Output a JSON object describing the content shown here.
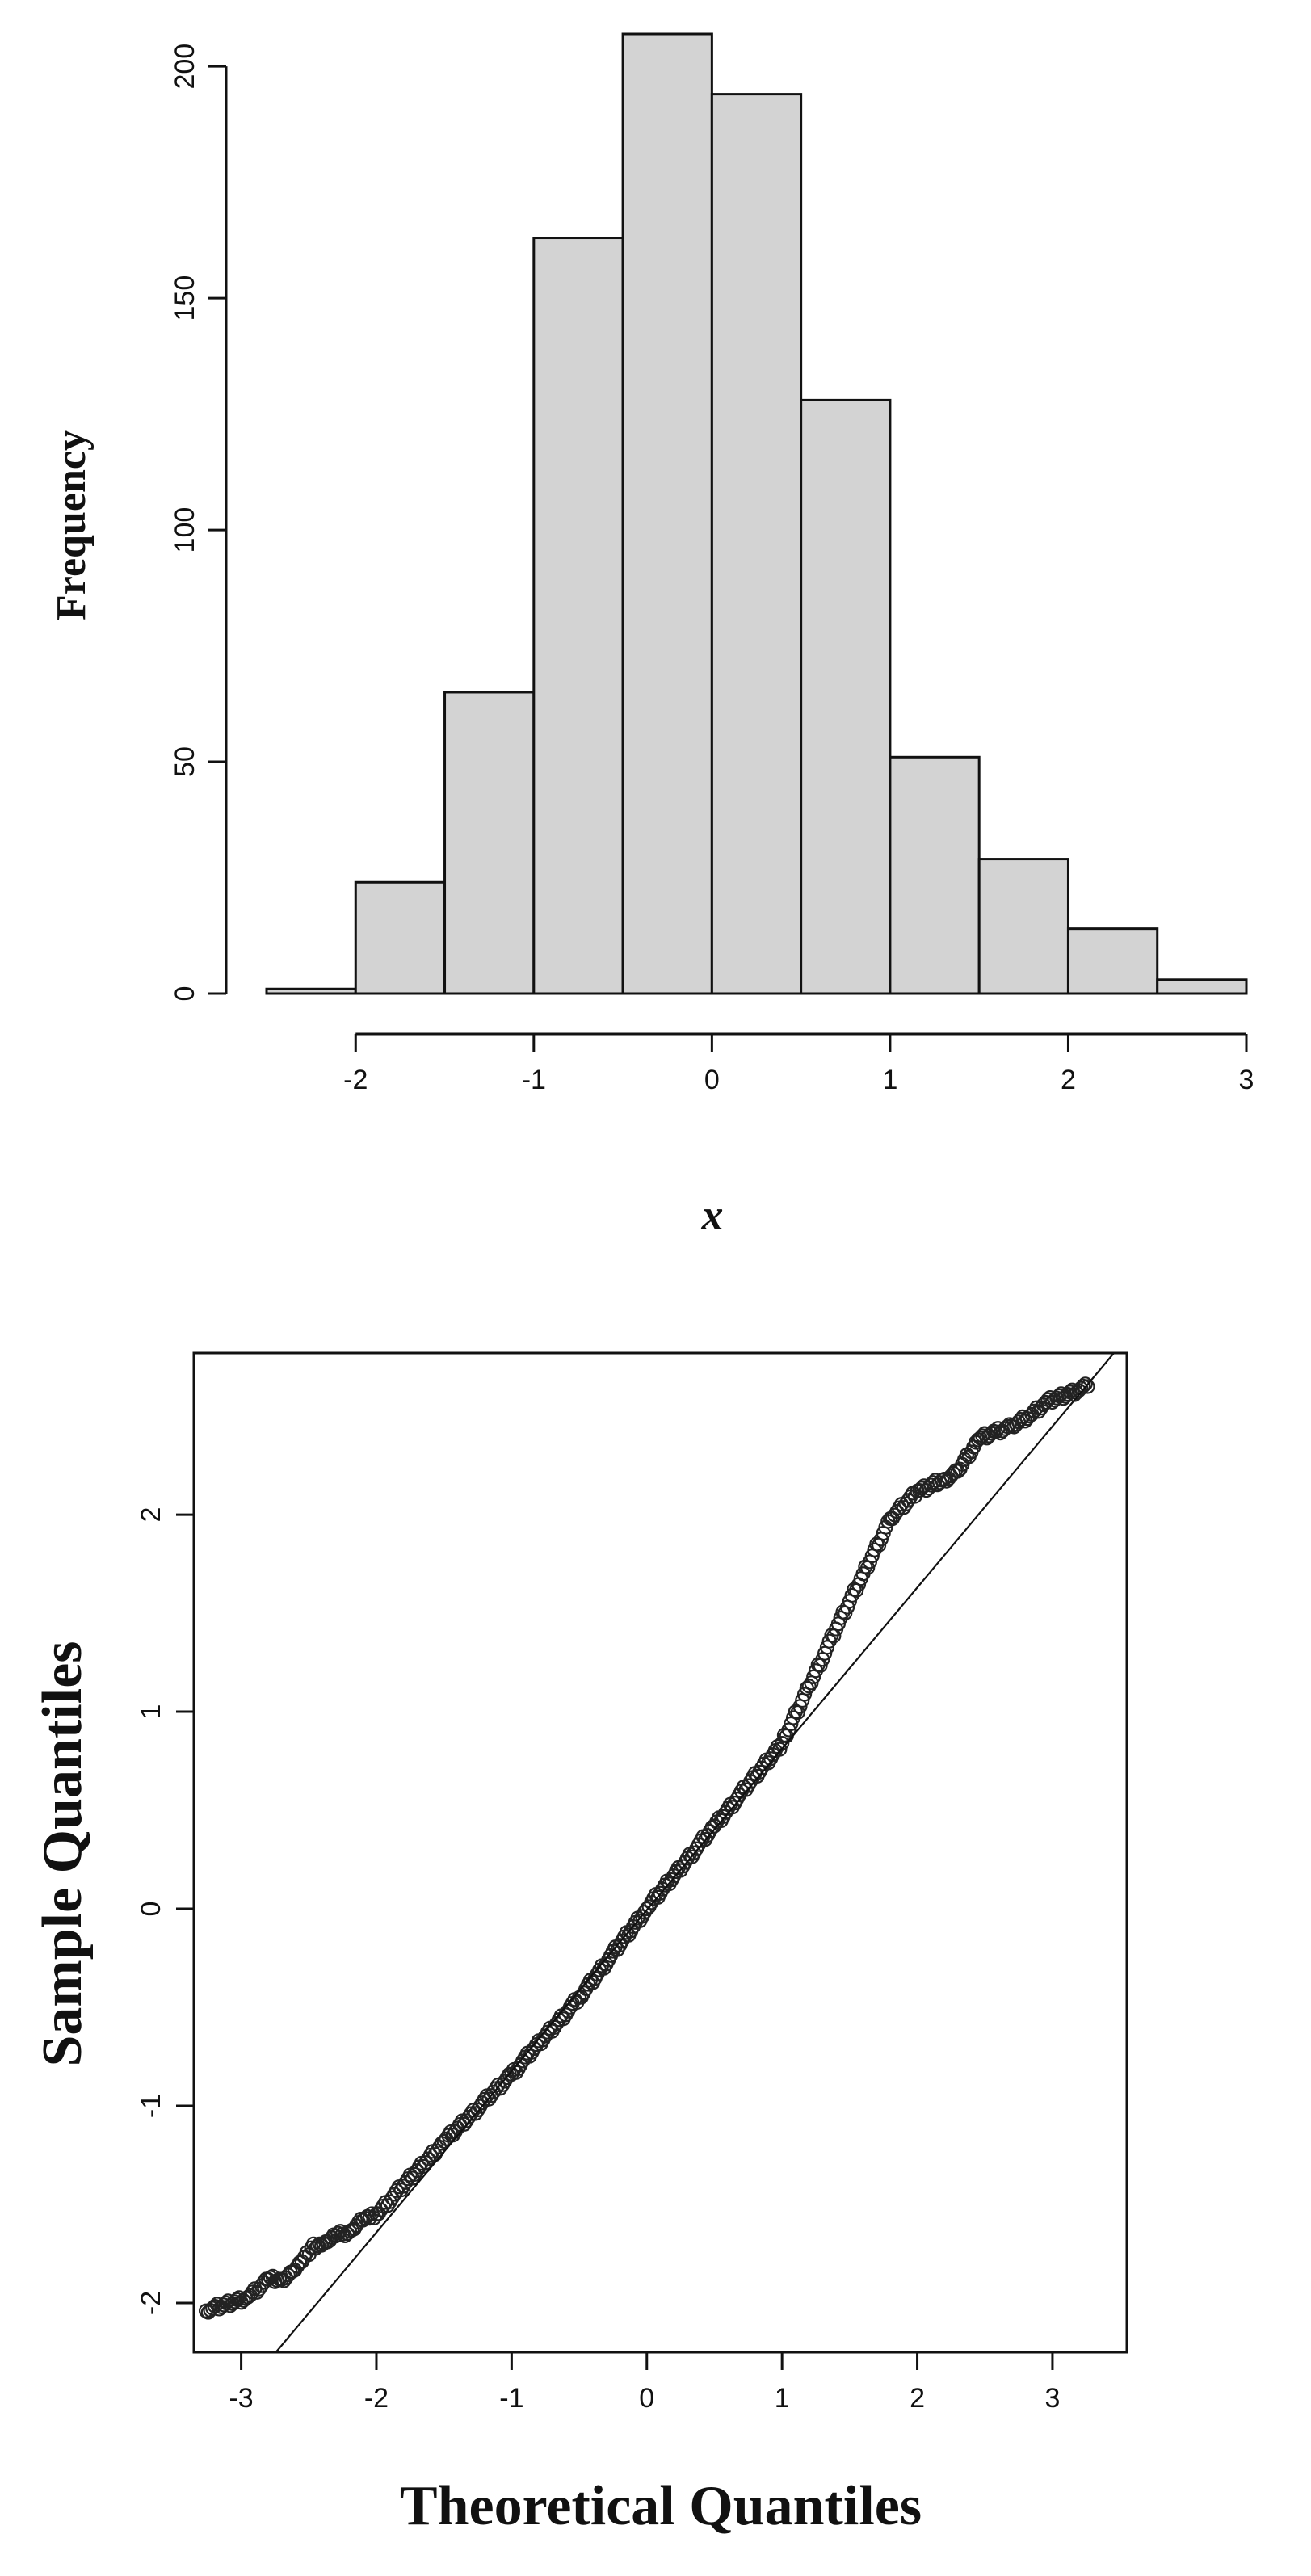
{
  "chart_data": [
    {
      "type": "bar",
      "subtype": "histogram",
      "xlabel": "x",
      "ylabel": "Frequency",
      "bin_edges": [
        -2.5,
        -2.0,
        -1.5,
        -1.0,
        -0.5,
        0.0,
        0.5,
        1.0,
        1.5,
        2.0,
        2.5,
        3.0
      ],
      "values": [
        1,
        24,
        65,
        163,
        207,
        194,
        128,
        51,
        29,
        14,
        3
      ],
      "xticks": [
        "-2",
        "-1",
        "0",
        "1",
        "2",
        "3"
      ],
      "yticks": [
        "0",
        "50",
        "100",
        "150",
        "200"
      ],
      "xlim": [
        -2.5,
        3.0
      ],
      "ylim": [
        0,
        207
      ],
      "grid": false
    },
    {
      "type": "scatter",
      "subtype": "qq-plot",
      "xlabel": "Theoretical Quantiles",
      "ylabel": "Sample Quantiles",
      "xticks": [
        "-3",
        "-2",
        "-1",
        "0",
        "1",
        "2",
        "3"
      ],
      "yticks": [
        "-2",
        "-1",
        "0",
        "1",
        "2"
      ],
      "xlim": [
        -3.35,
        3.55
      ],
      "ylim": [
        -2.25,
        2.82
      ],
      "reference_line": {
        "intercept": -0.006,
        "slope": 0.818
      },
      "sample_quantiles": [
        [
          -3.26,
          -2.04
        ],
        [
          -2.95,
          -1.97
        ],
        [
          -2.8,
          -1.88
        ],
        [
          -2.7,
          -1.88
        ],
        [
          -2.62,
          -1.84
        ],
        [
          -2.55,
          -1.79
        ],
        [
          -2.48,
          -1.72
        ],
        [
          -2.42,
          -1.7
        ],
        [
          -2.36,
          -1.69
        ],
        [
          -2.3,
          -1.66
        ],
        [
          -2.25,
          -1.65
        ],
        [
          -2.18,
          -1.63
        ],
        [
          -2.1,
          -1.58
        ],
        [
          -2.05,
          -1.57
        ],
        [
          -2.0,
          -1.55
        ],
        [
          -1.5,
          -1.18
        ],
        [
          -1.0,
          -0.84
        ],
        [
          -0.5,
          -0.45
        ],
        [
          0.0,
          0.0
        ],
        [
          0.5,
          0.42
        ],
        [
          1.0,
          0.84
        ],
        [
          1.2,
          1.13
        ],
        [
          1.4,
          1.42
        ],
        [
          1.6,
          1.7
        ],
        [
          1.8,
          1.98
        ],
        [
          2.0,
          2.12
        ],
        [
          2.1,
          2.15
        ],
        [
          2.2,
          2.18
        ],
        [
          2.3,
          2.22
        ],
        [
          2.45,
          2.38
        ],
        [
          2.58,
          2.42
        ],
        [
          2.7,
          2.45
        ],
        [
          2.83,
          2.5
        ],
        [
          2.95,
          2.57
        ],
        [
          3.26,
          2.65
        ]
      ]
    }
  ]
}
